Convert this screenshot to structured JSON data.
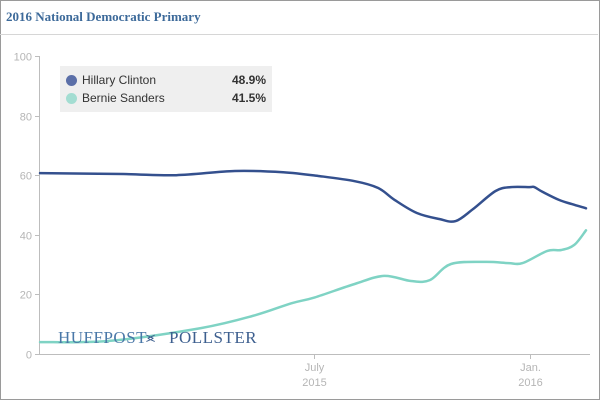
{
  "header": {
    "title": "2016 National Democratic Primary"
  },
  "legend": [
    {
      "name": "Hillary Clinton",
      "value": "48.9%",
      "color": "#5b6fa8"
    },
    {
      "name": "Bernie Sanders",
      "value": "41.5%",
      "color": "#a3ddd2"
    }
  ],
  "logo": {
    "left": "HUFFPOST",
    "right": "POLLSTER"
  },
  "chart_data": {
    "type": "line",
    "title": "2016 National Democratic Primary",
    "xlabel": "",
    "ylabel": "",
    "ylim": [
      0,
      100
    ],
    "yticks": [
      0,
      20,
      40,
      60,
      80,
      100
    ],
    "xticks": [
      {
        "label": [
          "July",
          "2015"
        ],
        "date": "2015-07-01"
      },
      {
        "label": [
          "Jan.",
          "2016"
        ],
        "date": "2016-01-01"
      }
    ],
    "xrange": [
      "2014-11-10",
      "2016-02-18"
    ],
    "grid": false,
    "legend_position": "top-left",
    "series": [
      {
        "name": "Hillary Clinton",
        "color": "#34508e",
        "points": [
          [
            "2014-11-10",
            60.7
          ],
          [
            "2015-01-20",
            60.4
          ],
          [
            "2015-03-06",
            60.0
          ],
          [
            "2015-04-25",
            61.4
          ],
          [
            "2015-06-05",
            61.0
          ],
          [
            "2015-07-06",
            59.7
          ],
          [
            "2015-08-05",
            58.0
          ],
          [
            "2015-08-25",
            55.7
          ],
          [
            "2015-09-08",
            51.7
          ],
          [
            "2015-09-27",
            47.3
          ],
          [
            "2015-10-16",
            45.3
          ],
          [
            "2015-10-30",
            44.6
          ],
          [
            "2015-11-14",
            48.7
          ],
          [
            "2015-12-03",
            54.7
          ],
          [
            "2015-12-16",
            56.0
          ],
          [
            "2016-01-01",
            56.0
          ],
          [
            "2016-01-05",
            56.0
          ],
          [
            "2016-01-12",
            54.4
          ],
          [
            "2016-01-26",
            51.7
          ],
          [
            "2016-02-06",
            50.3
          ],
          [
            "2016-02-18",
            48.9
          ]
        ]
      },
      {
        "name": "Bernie Sanders",
        "color": "#7fd3c4",
        "points": [
          [
            "2014-11-10",
            4.0
          ],
          [
            "2015-01-08",
            4.4
          ],
          [
            "2015-03-27",
            8.7
          ],
          [
            "2015-05-12",
            13.0
          ],
          [
            "2015-06-12",
            17.0
          ],
          [
            "2015-07-02",
            19.0
          ],
          [
            "2015-08-05",
            23.5
          ],
          [
            "2015-08-30",
            26.2
          ],
          [
            "2015-09-22",
            24.5
          ],
          [
            "2015-10-08",
            24.8
          ],
          [
            "2015-10-26",
            30.2
          ],
          [
            "2015-11-25",
            30.9
          ],
          [
            "2015-12-14",
            30.5
          ],
          [
            "2015-12-26",
            30.5
          ],
          [
            "2016-01-16",
            34.6
          ],
          [
            "2016-01-28",
            34.9
          ],
          [
            "2016-02-08",
            36.6
          ],
          [
            "2016-02-18",
            41.5
          ]
        ]
      }
    ]
  }
}
